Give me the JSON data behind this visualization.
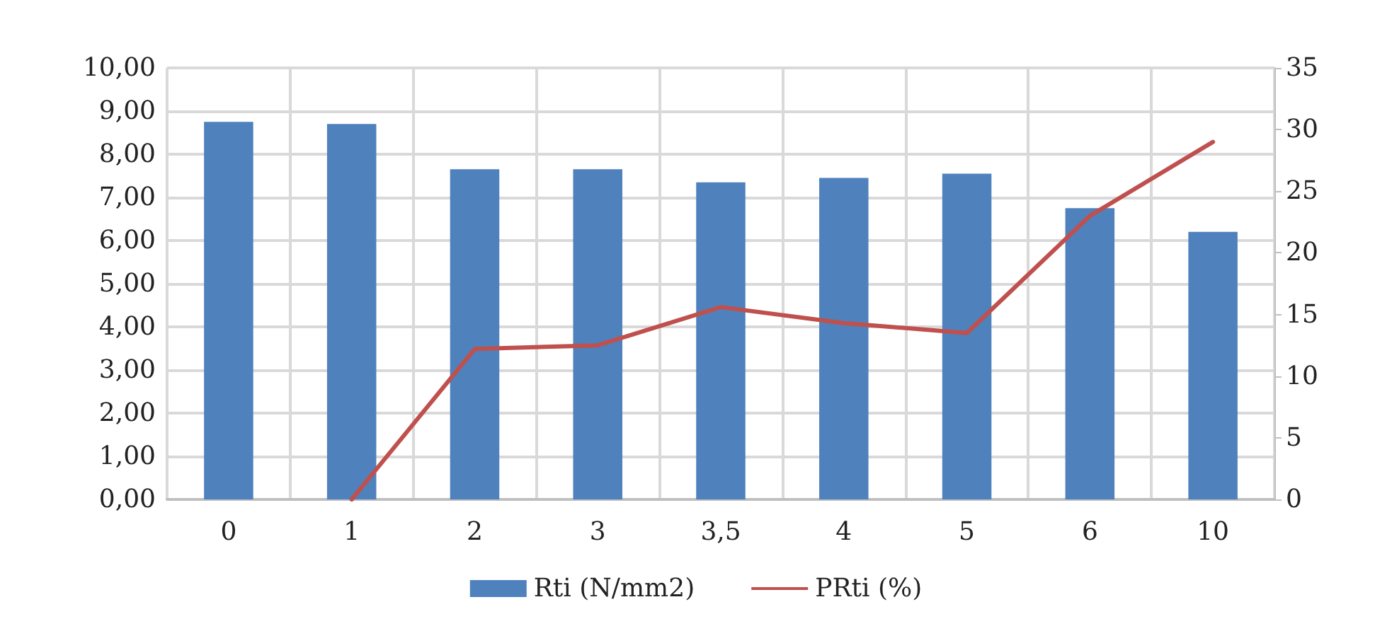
{
  "chart_data": {
    "type": "bar",
    "categories": [
      "0",
      "1",
      "2",
      "3",
      "3,5",
      "4",
      "5",
      "6",
      "10"
    ],
    "series": [
      {
        "name": "Rti (N/mm2)",
        "color": "#4f81bd",
        "values": [
          8.75,
          8.7,
          7.65,
          7.65,
          7.35,
          7.45,
          7.55,
          6.75,
          6.2
        ]
      },
      {
        "name": "PRti (%)",
        "type": "line",
        "axis": "y2",
        "color": "#c0504d",
        "values": [
          null,
          0,
          12.2,
          12.5,
          15.6,
          14.3,
          13.5,
          23,
          29
        ]
      }
    ],
    "ylim": [
      0,
      10
    ],
    "yticks": [
      {
        "value": 0,
        "label": "0,00"
      },
      {
        "value": 1,
        "label": "1,00"
      },
      {
        "value": 2,
        "label": "2,00"
      },
      {
        "value": 3,
        "label": "3,00"
      },
      {
        "value": 4,
        "label": "4,00"
      },
      {
        "value": 5,
        "label": "5,00"
      },
      {
        "value": 6,
        "label": "6,00"
      },
      {
        "value": 7,
        "label": "7,00"
      },
      {
        "value": 8,
        "label": "8,00"
      },
      {
        "value": 9,
        "label": "9,00"
      },
      {
        "value": 10,
        "label": "10,00"
      }
    ],
    "y2lim": [
      0,
      35
    ],
    "y2ticks": [
      0,
      5,
      10,
      15,
      20,
      25,
      30,
      35
    ],
    "grid": true,
    "legend": "bottom",
    "marker": "none",
    "line_style": "solid"
  }
}
